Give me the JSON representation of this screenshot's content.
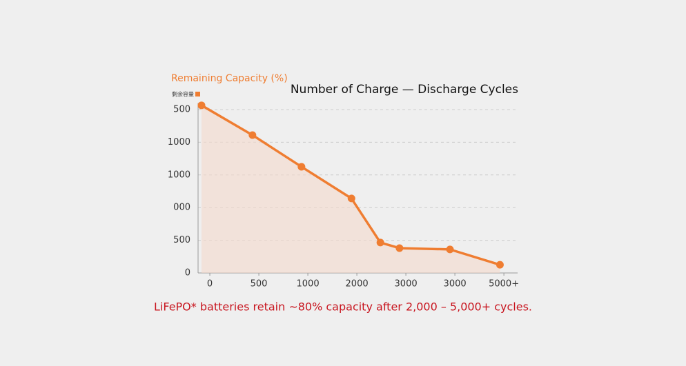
{
  "chart_data": {
    "type": "line",
    "title": "Number of Charge — Discharge Cycles",
    "y_label": "Remaining Capacity (%)",
    "caption": "LiFePO* batteries retain ~80% capacity after 2,000 – 5,000+ cycles.",
    "x": [
      -0.17,
      0.87,
      1.87,
      2.89,
      3.48,
      3.87,
      4.9,
      5.92
    ],
    "series": [
      {
        "name": "剩余容量",
        "color": "#ef7d31",
        "values": [
          513,
          422,
          325,
          228,
          93,
          76,
          72,
          25
        ]
      }
    ],
    "xlim": [
      -0.24,
      6.28
    ],
    "xticks": [
      0,
      {
        "value": 1,
        "label": "500"
      },
      {
        "value": 2,
        "label": "1000"
      },
      {
        "value": 3,
        "label": "2000"
      },
      {
        "value": 4,
        "label": "3000"
      },
      {
        "value": 5,
        "label": "3000"
      },
      {
        "value": 6,
        "label": "5000+"
      }
    ],
    "ylim": [
      0,
      520
    ],
    "yticks": [
      0,
      {
        "value": 100,
        "label": "500"
      },
      {
        "value": 200,
        "label": "000"
      },
      {
        "value": 300,
        "label": "1000"
      },
      {
        "value": 400,
        "label": "1000"
      },
      500
    ],
    "grid": true,
    "area": true
  }
}
